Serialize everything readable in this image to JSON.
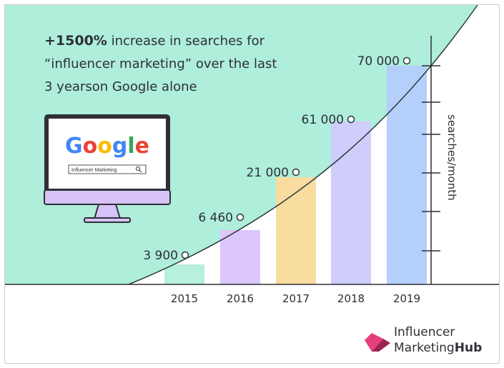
{
  "headline": {
    "emphasis": "+1500%",
    "line1_rest": " increase in searches for",
    "line2": "“influencer marketing” over the last",
    "line3": "3 yearson Google alone"
  },
  "monitor": {
    "logo_letters": [
      "G",
      "o",
      "o",
      "g",
      "l",
      "e"
    ],
    "logo_colors": [
      "#4285F4",
      "#EA4335",
      "#FBBC05",
      "#4285F4",
      "#34A853",
      "#EA4335"
    ],
    "search_query": "Influencer Marketing"
  },
  "brand": {
    "line1": "Influencer",
    "line2_a": "Marketing",
    "line2_b": "Hub",
    "colors": [
      "#e6407a",
      "#9c2352"
    ]
  },
  "colors": {
    "mint": "#aeeedb",
    "curve": "#2b3a3a",
    "axis": "#2f2f35"
  },
  "chart_data": {
    "type": "bar",
    "categories": [
      "2015",
      "2016",
      "2017",
      "2018",
      "2019"
    ],
    "values": [
      3900,
      6460,
      21000,
      61000,
      70000
    ],
    "value_labels": [
      "3 900",
      "6 460",
      "21 000",
      "61 000",
      "70 000"
    ],
    "bar_colors": [
      "#b7f0dc",
      "#dcc6fb",
      "#f8dca0",
      "#cfcdfb",
      "#b5cffb"
    ],
    "ylabel": "searches/month",
    "xlabel": "",
    "title": ""
  }
}
